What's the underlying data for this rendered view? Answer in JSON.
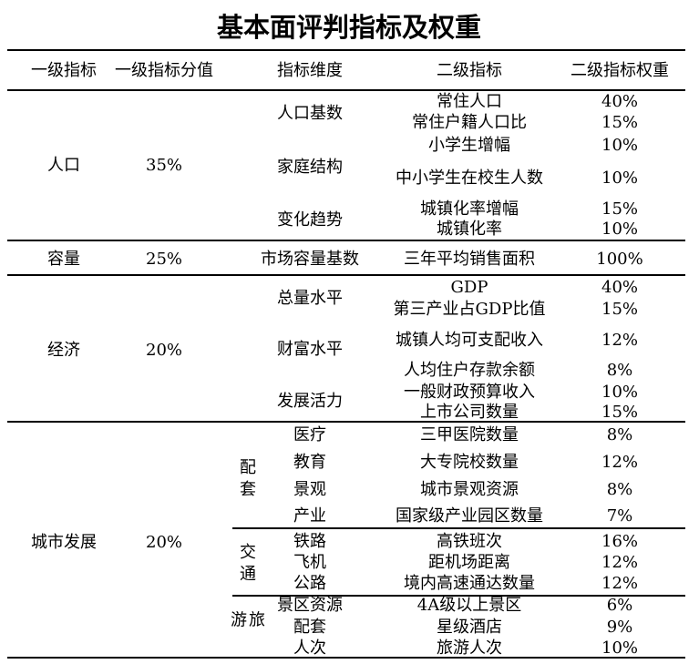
{
  "title": "基本面评判指标及权重",
  "headers": [
    "一级指标",
    "一级指标分值",
    "指标维度",
    "二级指标",
    "二级指标权重"
  ],
  "sections": [
    {
      "name": "人口",
      "score": "35%",
      "dimensions": [
        {
          "name": "人口基数",
          "items": [
            {
              "name": "常住人口",
              "weight": "40%"
            },
            {
              "name": "常住户籍人口比",
              "weight": "15%"
            }
          ]
        },
        {
          "name": "家庭结构",
          "items": [
            {
              "name": "小学生增幅",
              "weight": "10%"
            },
            {
              "name": "中小学生在校生人数",
              "weight": "10%"
            }
          ]
        },
        {
          "name": "变化趋势",
          "items": [
            {
              "name": "城镇化率增幅",
              "weight": "15%"
            },
            {
              "name": "城镇化率",
              "weight": "10%"
            }
          ]
        }
      ]
    },
    {
      "name": "容量",
      "score": "25%",
      "dimensions": [
        {
          "name": "市场容量基数",
          "items": [
            {
              "name": "三年平均销售面积",
              "weight": "100%"
            }
          ]
        }
      ]
    },
    {
      "name": "经济",
      "score": "20%",
      "dimensions": [
        {
          "name": "总量水平",
          "items": [
            {
              "name": "GDP",
              "weight": "40%"
            },
            {
              "name": "第三产业占GDP比值",
              "weight": "15%"
            }
          ]
        },
        {
          "name": "财富水平",
          "items": [
            {
              "name": "城镇人均可支配收入",
              "weight": "12%"
            },
            {
              "name": "人均住户存款余额",
              "weight": "8%"
            }
          ]
        },
        {
          "name": "发展活力",
          "items": [
            {
              "name": "一般财政预算收入",
              "weight": "10%"
            },
            {
              "name": "上市公司数量",
              "weight": "15%"
            }
          ]
        }
      ]
    },
    {
      "name": "城市发展",
      "score": "20%",
      "groups": [
        {
          "label": "配套",
          "dimensions": [
            {
              "name": "医疗",
              "item": "三甲医院数量",
              "weight": "8%"
            },
            {
              "name": "教育",
              "item": "大专院校数量",
              "weight": "12%"
            },
            {
              "name": "景观",
              "item": "城市景观资源",
              "weight": "8%"
            },
            {
              "name": "产业",
              "item": "国家级产业园区数量",
              "weight": "7%"
            }
          ]
        },
        {
          "label": "交通",
          "dimensions": [
            {
              "name": "铁路",
              "item": "高铁班次",
              "weight": "16%"
            },
            {
              "name": "飞机",
              "item": "距机场距离",
              "weight": "12%"
            },
            {
              "name": "公路",
              "item": "境内高速通达数量",
              "weight": "12%"
            }
          ]
        },
        {
          "label": "旅游",
          "dimensions": [
            {
              "name": "景区资源",
              "item": "4A级以上景区",
              "weight": "6%"
            },
            {
              "name": "配套",
              "item": "星级酒店",
              "weight": "9%"
            },
            {
              "name": "人次",
              "item": "旅游人次",
              "weight": "10%"
            }
          ]
        }
      ]
    }
  ]
}
